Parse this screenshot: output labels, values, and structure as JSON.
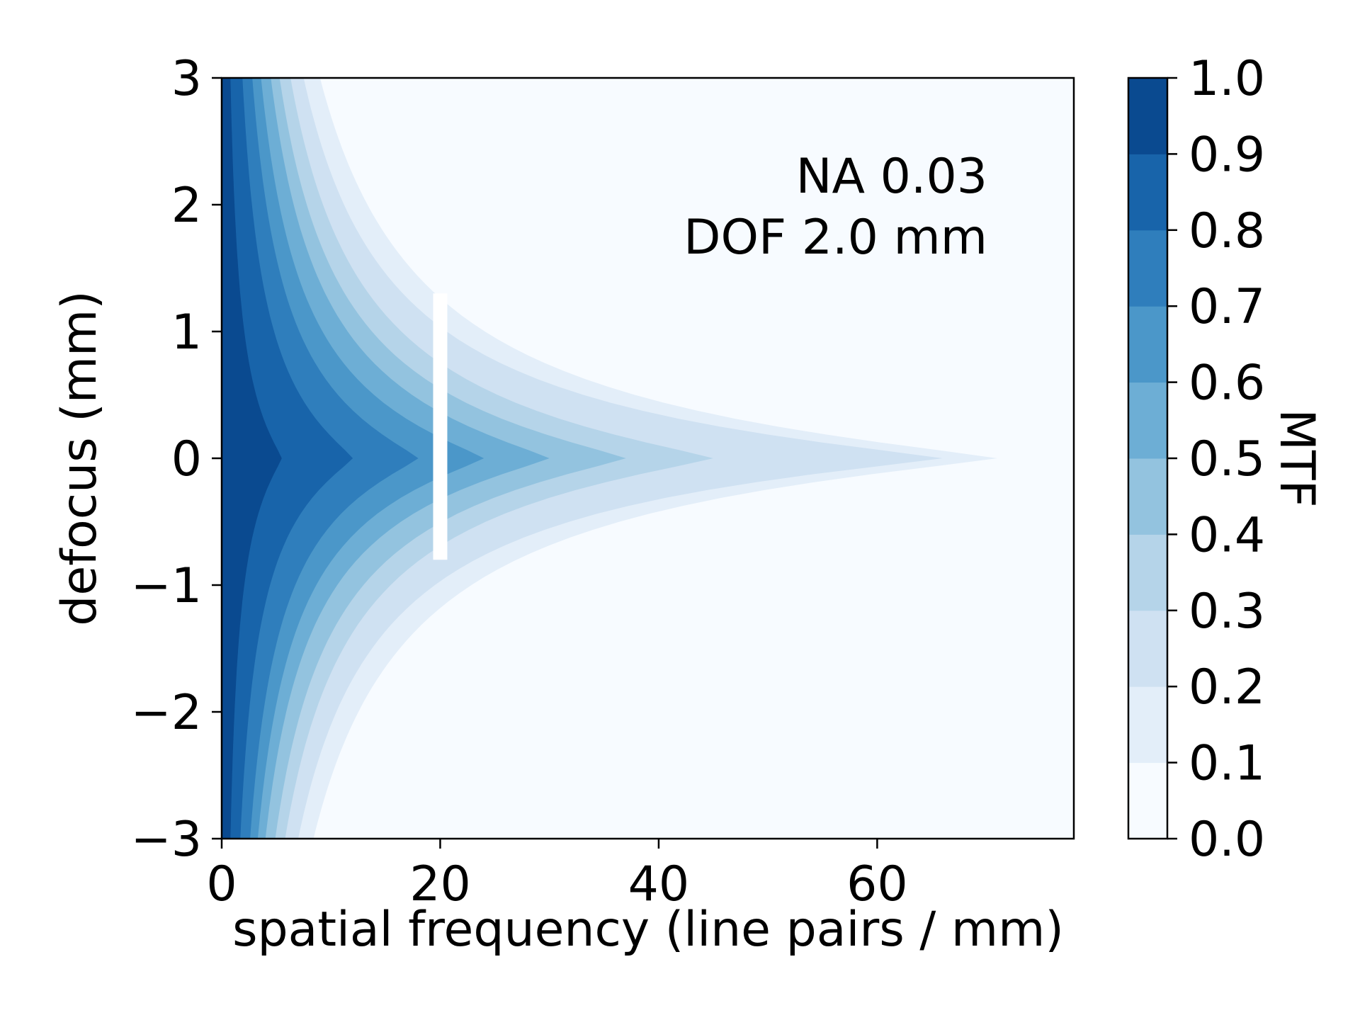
{
  "chart_data": {
    "type": "heatmap",
    "subtype": "filled-contour",
    "xlabel": "spatial frequency (line pairs / mm)",
    "ylabel": "defocus (mm)",
    "xlim": [
      0,
      78
    ],
    "ylim": [
      -3,
      3
    ],
    "x_ticks": [
      {
        "value": 0,
        "label": "0"
      },
      {
        "value": 20,
        "label": "20"
      },
      {
        "value": 40,
        "label": "40"
      },
      {
        "value": 60,
        "label": "60"
      }
    ],
    "y_ticks": [
      {
        "value": 3,
        "label": "3"
      },
      {
        "value": 2,
        "label": "2"
      },
      {
        "value": 1,
        "label": "1"
      },
      {
        "value": 0,
        "label": "0"
      },
      {
        "value": -1,
        "label": "−1"
      },
      {
        "value": -2,
        "label": "−2"
      },
      {
        "value": -3,
        "label": "−3"
      }
    ],
    "annotation": {
      "lines": [
        "NA 0.03",
        "DOF 2.0 mm"
      ]
    },
    "marker_line": {
      "x": 20,
      "y_from": -0.8,
      "y_to": 1.3,
      "color": "#ffffff"
    },
    "colorbar": {
      "label": "MTF",
      "min": 0.0,
      "max": 1.0,
      "tick_labels": [
        "0.0",
        "0.1",
        "0.2",
        "0.3",
        "0.4",
        "0.5",
        "0.6",
        "0.7",
        "0.8",
        "0.9",
        "1.0"
      ],
      "colors": [
        "#f7fbff",
        "#e3eef9",
        "#cfe1f2",
        "#b5d4e9",
        "#93c3df",
        "#6daed5",
        "#4b97c9",
        "#2f7ebc",
        "#1864aa",
        "#0a4a90",
        "#08306b"
      ]
    },
    "contour_levels": [
      0.1,
      0.2,
      0.3,
      0.4,
      0.5,
      0.6,
      0.7,
      0.8,
      0.9
    ],
    "contour_extent_at_zero_defocus": [
      71,
      66,
      45,
      37,
      30,
      24,
      18,
      12,
      5.5
    ],
    "contour_extent_at_plus_3mm": [
      9,
      7.5,
      6.3,
      5.3,
      4.5,
      3.6,
      2.8,
      1.9,
      0.8
    ],
    "contour_extent_at_minus_3mm": [
      8.4,
      7.0,
      5.8,
      4.9,
      4.0,
      3.3,
      2.6,
      1.7,
      0.8
    ]
  }
}
